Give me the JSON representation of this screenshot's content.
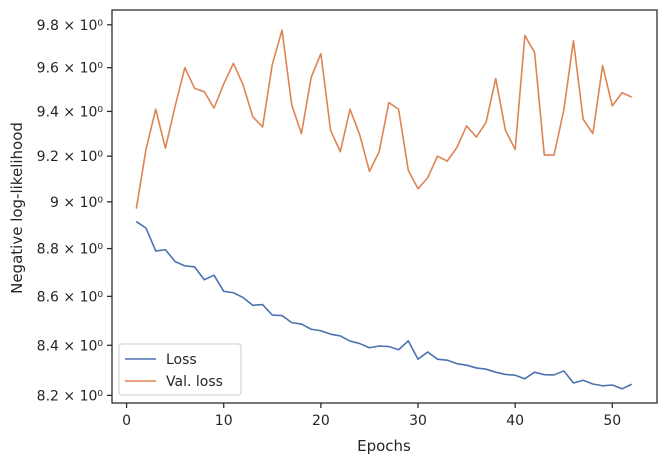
{
  "chart_data": {
    "type": "line",
    "xlabel": "Epochs",
    "ylabel": "Negative log-likelihood",
    "xlim": [
      -1.5,
      54.6
    ],
    "ylim": [
      8.17,
      9.87
    ],
    "yscale": "log",
    "xticks": [
      0,
      10,
      20,
      30,
      40,
      50
    ],
    "xtick_labels": [
      "0",
      "10",
      "20",
      "30",
      "40",
      "50"
    ],
    "yticks": [
      8.2,
      8.4,
      8.6,
      8.8,
      9.0,
      9.2,
      9.4,
      9.6,
      9.8
    ],
    "ytick_labels": [
      "8.2 × 10⁰",
      "8.4 × 10⁰",
      "8.6 × 10⁰",
      "8.8 × 10⁰",
      "9 × 10⁰",
      "9.2 × 10⁰",
      "9.4 × 10⁰",
      "9.6 × 10⁰",
      "9.8 × 10⁰"
    ],
    "grid": false,
    "legend_position": "lower-left",
    "x": [
      1,
      2,
      3,
      4,
      5,
      6,
      7,
      8,
      9,
      10,
      11,
      12,
      13,
      14,
      15,
      16,
      17,
      18,
      19,
      20,
      21,
      22,
      23,
      24,
      25,
      26,
      27,
      28,
      29,
      30,
      31,
      32,
      33,
      34,
      35,
      36,
      37,
      38,
      39,
      40,
      41,
      42,
      43,
      44,
      45,
      46,
      47,
      48,
      49,
      50,
      51,
      52
    ],
    "series": [
      {
        "name": "Loss",
        "color": "#4c72b0",
        "values": [
          8.915,
          8.887,
          8.79,
          8.795,
          8.745,
          8.727,
          8.723,
          8.669,
          8.688,
          8.621,
          8.615,
          8.595,
          8.563,
          8.566,
          8.523,
          8.521,
          8.492,
          8.486,
          8.465,
          8.459,
          8.445,
          8.438,
          8.417,
          8.407,
          8.39,
          8.397,
          8.395,
          8.382,
          8.418,
          8.344,
          8.373,
          8.344,
          8.34,
          8.326,
          8.32,
          8.309,
          8.304,
          8.292,
          8.283,
          8.28,
          8.266,
          8.292,
          8.282,
          8.281,
          8.297,
          8.249,
          8.26,
          8.245,
          8.238,
          8.241,
          8.226,
          8.244
        ]
      },
      {
        "name": "Val. loss",
        "color": "#dd8452",
        "values": [
          8.97,
          9.23,
          9.41,
          9.235,
          9.425,
          9.6,
          9.505,
          9.49,
          9.415,
          9.525,
          9.62,
          9.52,
          9.375,
          9.33,
          9.615,
          9.775,
          9.43,
          9.3,
          9.555,
          9.665,
          9.315,
          9.22,
          9.41,
          9.295,
          9.133,
          9.22,
          9.44,
          9.41,
          9.137,
          9.057,
          9.105,
          9.2,
          9.178,
          9.238,
          9.335,
          9.285,
          9.35,
          9.55,
          9.315,
          9.23,
          9.75,
          9.67,
          9.205,
          9.205,
          9.405,
          9.725,
          9.365,
          9.3,
          9.61,
          9.425,
          9.485,
          9.465
        ]
      }
    ]
  }
}
